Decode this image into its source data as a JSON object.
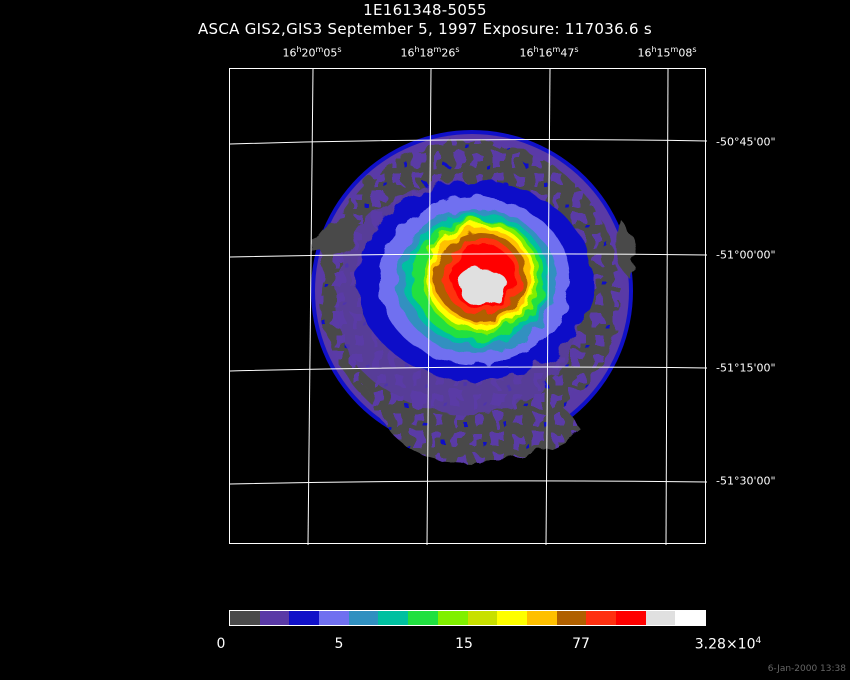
{
  "header": {
    "title": "1E161348-5055",
    "subtitle": "ASCA GIS2,GIS3 September 5, 1997 Exposure: 117036.6 s"
  },
  "ra_labels": [
    {
      "h": "16",
      "hu": "h",
      "m": "20",
      "mu": "m",
      "s": "05",
      "su": "s"
    },
    {
      "h": "16",
      "hu": "h",
      "m": "18",
      "mu": "m",
      "s": "26",
      "su": "s"
    },
    {
      "h": "16",
      "hu": "h",
      "m": "16",
      "mu": "m",
      "s": "47",
      "su": "s"
    },
    {
      "h": "16",
      "hu": "h",
      "m": "15",
      "mu": "m",
      "s": "08",
      "su": "s"
    }
  ],
  "dec_labels": [
    "-50°45'00\"",
    "-51°00'00\"",
    "-51°15'00\"",
    "-51°30'00\""
  ],
  "colorbar": {
    "colors": [
      "#4a4a4a",
      "#5a3aa6",
      "#1010c8",
      "#7070f0",
      "#3090c0",
      "#00c0a0",
      "#20e040",
      "#80f000",
      "#c8e000",
      "#ffff00",
      "#ffc000",
      "#b06000",
      "#ff3010",
      "#ff0000",
      "#e0e0e0",
      "#ffffff"
    ],
    "labels": [
      "0",
      "5",
      "15",
      "77"
    ],
    "max_label_base": "3.28×10",
    "max_label_exp": "4"
  },
  "timestamp": "6-Jan-2000 13:38"
}
